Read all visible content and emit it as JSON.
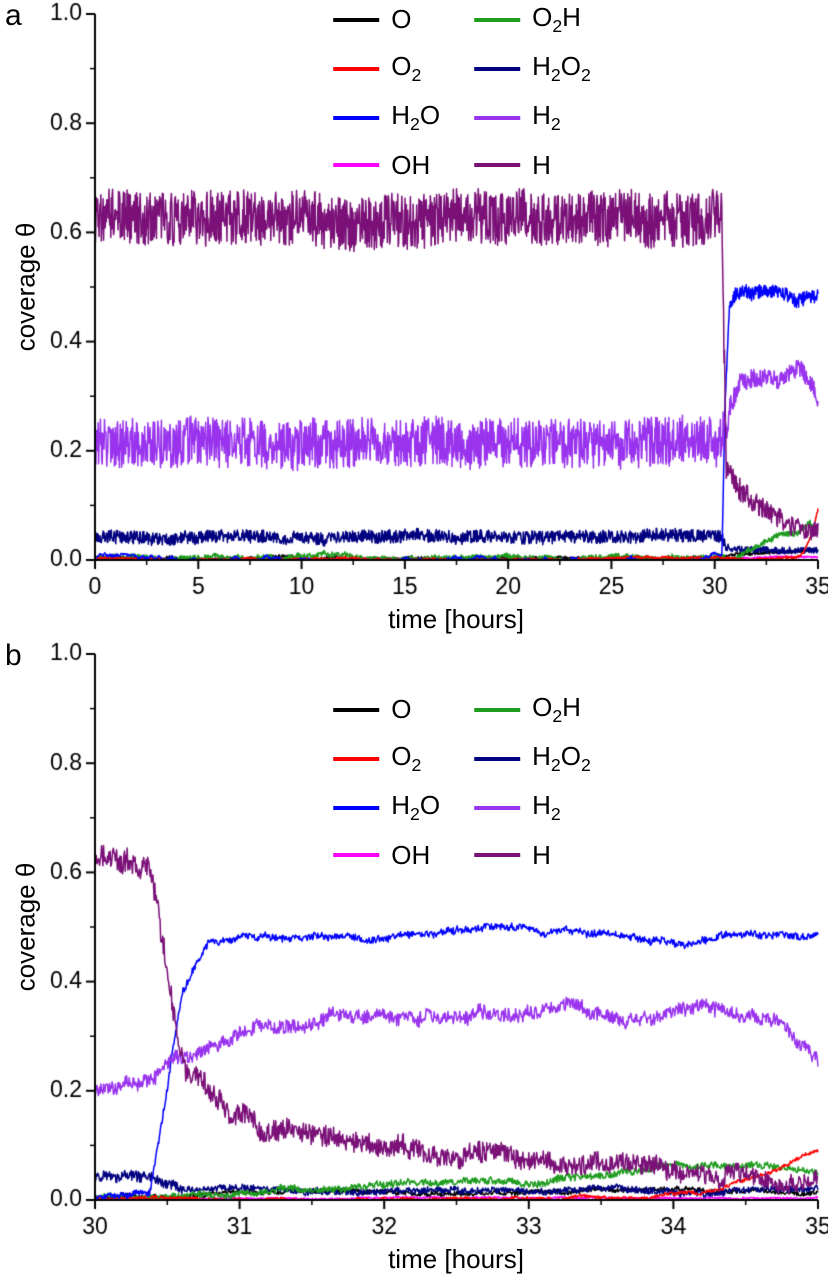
{
  "chart_data": [
    {
      "type": "line",
      "panel_label": "a",
      "xlabel": "time [hours]",
      "ylabel": "coverage θ",
      "xlim": [
        0,
        35
      ],
      "ylim": [
        0,
        1.0
      ],
      "xticks": [
        0,
        5,
        10,
        15,
        20,
        25,
        30,
        35
      ],
      "xtick_labels": [
        "0",
        "5",
        "10",
        "15",
        "20",
        "25",
        "30",
        "35"
      ],
      "yticks": [
        0.0,
        0.2,
        0.4,
        0.6,
        0.8,
        1.0
      ],
      "ytick_labels": [
        "0.0",
        "0.2",
        "0.4",
        "0.6",
        "0.8",
        "1.0"
      ],
      "legend_position": "top-center",
      "grid": false,
      "npoints": 1600,
      "draw_order": [
        6,
        0,
        3,
        1,
        2,
        4,
        5,
        7
      ],
      "series": [
        {
          "name": "O",
          "color": "#000000",
          "keypoints": [
            [
              0,
              0.004
            ],
            [
              30.3,
              0.004
            ],
            [
              31,
              0.012
            ],
            [
              33,
              0.016
            ],
            [
              35,
              0.02
            ]
          ],
          "noise": 0.003,
          "wander": 0.002
        },
        {
          "name": "O2H",
          "color": "#1e9c1e",
          "keypoints": [
            [
              0,
              0.002
            ],
            [
              31,
              0.005
            ],
            [
              32,
              0.025
            ],
            [
              33,
              0.04
            ],
            [
              34,
              0.045
            ],
            [
              34.6,
              0.065
            ],
            [
              35,
              0.05
            ]
          ],
          "noise": 0.005,
          "wander": 0.003
        },
        {
          "name": "O2",
          "color": "#ff0000",
          "keypoints": [
            [
              0,
              0.002
            ],
            [
              33.8,
              0.003
            ],
            [
              34.3,
              0.015
            ],
            [
              34.7,
              0.05
            ],
            [
              35,
              0.095
            ]
          ],
          "noise": 0.002,
          "wander": 0.002
        },
        {
          "name": "H2O2",
          "color": "#000080",
          "keypoints": [
            [
              0,
              0.042
            ],
            [
              30.35,
              0.042
            ],
            [
              30.6,
              0.022
            ],
            [
              31.5,
              0.018
            ],
            [
              35,
              0.018
            ]
          ],
          "noise": [
            [
              0,
              0.012
            ],
            [
              30.4,
              0.012
            ],
            [
              30.7,
              0.006
            ],
            [
              35,
              0.006
            ]
          ],
          "wander": 0.002
        },
        {
          "name": "H2O",
          "color": "#0000ff",
          "keypoints": [
            [
              0,
              0.003
            ],
            [
              30.35,
              0.003
            ],
            [
              30.5,
              0.28
            ],
            [
              30.7,
              0.45
            ],
            [
              31,
              0.48
            ],
            [
              32,
              0.485
            ],
            [
              33,
              0.49
            ],
            [
              34,
              0.48
            ],
            [
              35,
              0.49
            ]
          ],
          "noise": [
            [
              0,
              0.002
            ],
            [
              30.35,
              0.002
            ],
            [
              30.7,
              0.012
            ],
            [
              35,
              0.012
            ]
          ],
          "wander": 0.006
        },
        {
          "name": "H2",
          "color": "#9933ee",
          "keypoints": [
            [
              0,
              0.215
            ],
            [
              30.35,
              0.215
            ],
            [
              30.7,
              0.27
            ],
            [
              31.2,
              0.32
            ],
            [
              31.8,
              0.33
            ],
            [
              33,
              0.33
            ],
            [
              34.2,
              0.345
            ],
            [
              34.8,
              0.31
            ],
            [
              35,
              0.29
            ]
          ],
          "noise": [
            [
              0,
              0.045
            ],
            [
              30.4,
              0.045
            ],
            [
              30.8,
              0.018
            ],
            [
              35,
              0.015
            ]
          ],
          "wander": 0.004
        },
        {
          "name": "OH",
          "color": "#ff00ff",
          "keypoints": [
            [
              0,
              0.002
            ],
            [
              30.5,
              0.002
            ],
            [
              35,
              0.005
            ]
          ],
          "noise": 0.0015,
          "wander": 0.001
        },
        {
          "name": "H",
          "color": "#7a1078",
          "keypoints": [
            [
              0,
              0.625
            ],
            [
              30.35,
              0.625
            ],
            [
              30.55,
              0.16
            ],
            [
              31,
              0.125
            ],
            [
              32,
              0.1
            ],
            [
              32.8,
              0.08
            ],
            [
              33.6,
              0.065
            ],
            [
              34.5,
              0.055
            ],
            [
              35,
              0.05
            ]
          ],
          "noise": [
            [
              0,
              0.05
            ],
            [
              30.35,
              0.05
            ],
            [
              30.6,
              0.022
            ],
            [
              35,
              0.015
            ]
          ],
          "wander": 0.004
        }
      ]
    },
    {
      "type": "line",
      "panel_label": "b",
      "xlabel": "time [hours]",
      "ylabel": "coverage θ",
      "xlim": [
        30,
        35
      ],
      "ylim": [
        0,
        1.0
      ],
      "xticks": [
        30,
        31,
        32,
        33,
        34,
        35
      ],
      "xtick_labels": [
        "30",
        "31",
        "32",
        "33",
        "34",
        "35"
      ],
      "yticks": [
        0.0,
        0.2,
        0.4,
        0.6,
        0.8,
        1.0
      ],
      "ytick_labels": [
        "0.0",
        "0.2",
        "0.4",
        "0.6",
        "0.8",
        "1.0"
      ],
      "legend_position": "top-center",
      "grid": false,
      "npoints": 1100,
      "draw_order": [
        6,
        0,
        3,
        1,
        2,
        4,
        5,
        7
      ],
      "series": [
        {
          "name": "O",
          "color": "#000000",
          "keypoints": [
            [
              30,
              0.005
            ],
            [
              31,
              0.012
            ],
            [
              33,
              0.016
            ],
            [
              35,
              0.02
            ]
          ],
          "noise": 0.004,
          "wander": 0.003
        },
        {
          "name": "O2H",
          "color": "#1e9c1e",
          "keypoints": [
            [
              30,
              0.002
            ],
            [
              30.8,
              0.005
            ],
            [
              31.5,
              0.022
            ],
            [
              32.5,
              0.032
            ],
            [
              33.5,
              0.045
            ],
            [
              34.3,
              0.06
            ],
            [
              34.7,
              0.055
            ],
            [
              35,
              0.05
            ]
          ],
          "noise": 0.006,
          "wander": 0.004
        },
        {
          "name": "O2",
          "color": "#ff0000",
          "keypoints": [
            [
              30,
              0.002
            ],
            [
              33.8,
              0.004
            ],
            [
              34.3,
              0.018
            ],
            [
              34.7,
              0.055
            ],
            [
              35,
              0.09
            ]
          ],
          "noise": 0.003,
          "wander": 0.003
        },
        {
          "name": "H2O2",
          "color": "#000080",
          "keypoints": [
            [
              30,
              0.042
            ],
            [
              30.4,
              0.042
            ],
            [
              30.6,
              0.022
            ],
            [
              31.5,
              0.018
            ],
            [
              35,
              0.018
            ]
          ],
          "noise": [
            [
              30,
              0.01
            ],
            [
              30.45,
              0.01
            ],
            [
              30.7,
              0.006
            ],
            [
              35,
              0.006
            ]
          ],
          "wander": 0.003
        },
        {
          "name": "H2O",
          "color": "#0000ff",
          "keypoints": [
            [
              30,
              0.003
            ],
            [
              30.38,
              0.003
            ],
            [
              30.48,
              0.17
            ],
            [
              30.6,
              0.37
            ],
            [
              30.78,
              0.465
            ],
            [
              31,
              0.478
            ],
            [
              31.7,
              0.48
            ],
            [
              32.3,
              0.49
            ],
            [
              32.85,
              0.5
            ],
            [
              33.15,
              0.483
            ],
            [
              33.7,
              0.487
            ],
            [
              34,
              0.477
            ],
            [
              34.5,
              0.49
            ],
            [
              35,
              0.488
            ]
          ],
          "noise": 0.006,
          "wander": 0.006
        },
        {
          "name": "H2",
          "color": "#9933ee",
          "keypoints": [
            [
              30,
              0.205
            ],
            [
              30.4,
              0.215
            ],
            [
              30.55,
              0.25
            ],
            [
              30.85,
              0.3
            ],
            [
              31.1,
              0.315
            ],
            [
              31.6,
              0.33
            ],
            [
              32.1,
              0.32
            ],
            [
              32.6,
              0.33
            ],
            [
              33,
              0.335
            ],
            [
              33.5,
              0.33
            ],
            [
              34,
              0.34
            ],
            [
              34.35,
              0.35
            ],
            [
              34.7,
              0.315
            ],
            [
              35,
              0.275
            ]
          ],
          "noise": 0.012,
          "wander": 0.01
        },
        {
          "name": "OH",
          "color": "#ff00ff",
          "keypoints": [
            [
              30,
              0.003
            ],
            [
              35,
              0.005
            ]
          ],
          "noise": 0.0015,
          "wander": 0.001
        },
        {
          "name": "H",
          "color": "#7a1078",
          "keypoints": [
            [
              30,
              0.625
            ],
            [
              30.38,
              0.625
            ],
            [
              30.5,
              0.43
            ],
            [
              30.62,
              0.24
            ],
            [
              30.9,
              0.15
            ],
            [
              31.3,
              0.125
            ],
            [
              31.9,
              0.105
            ],
            [
              32.5,
              0.09
            ],
            [
              33,
              0.075
            ],
            [
              33.7,
              0.065
            ],
            [
              34.5,
              0.057
            ],
            [
              35,
              0.05
            ]
          ],
          "noise": [
            [
              30,
              0.022
            ],
            [
              30.6,
              0.02
            ],
            [
              31,
              0.02
            ],
            [
              35,
              0.015
            ]
          ],
          "wander": 0.01
        }
      ]
    }
  ]
}
